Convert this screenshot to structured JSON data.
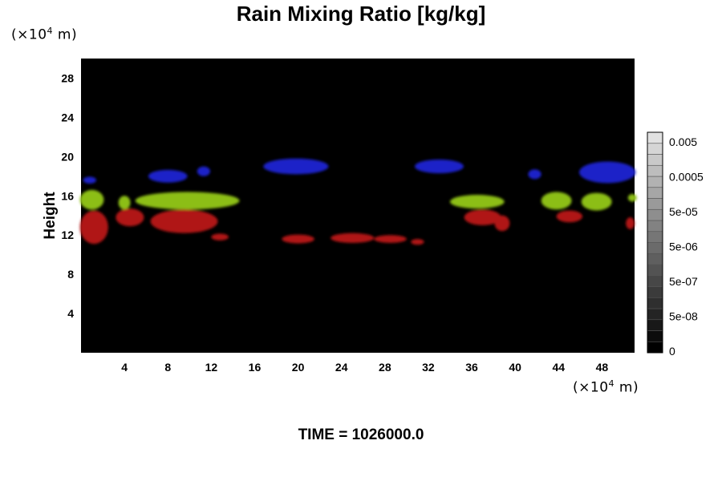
{
  "chart_data": {
    "type": "heatmap",
    "title": "Rain Mixing Ratio [kg/kg]",
    "ylabel": "Height",
    "x_unit_prefix": "(×10",
    "x_unit_exp": "4",
    "x_unit_suffix": " m)",
    "y_unit_prefix": "(×10",
    "y_unit_exp": "4",
    "y_unit_suffix": " m)",
    "xlim": [
      0,
      51
    ],
    "ylim": [
      0,
      30
    ],
    "xticks": [
      4,
      8,
      12,
      16,
      20,
      24,
      28,
      32,
      36,
      40,
      44,
      48
    ],
    "yticks": [
      4,
      8,
      12,
      16,
      20,
      24,
      28
    ],
    "background_color": "#000000",
    "colorbar": {
      "labels": [
        "0",
        "5e-08",
        "5e-07",
        "5e-06",
        "5e-05",
        "0.0005",
        "0.005"
      ],
      "levels": 20
    },
    "regions": [
      {
        "layer": "upper",
        "color": "#1a22c8",
        "blobs": [
          {
            "x": 0.8,
            "y": 17.6,
            "w": 1.2,
            "h": 0.7
          },
          {
            "x": 8.0,
            "y": 18.0,
            "w": 3.6,
            "h": 1.3
          },
          {
            "x": 11.3,
            "y": 18.5,
            "w": 1.2,
            "h": 1.0
          },
          {
            "x": 19.8,
            "y": 19.0,
            "w": 6.0,
            "h": 1.6
          },
          {
            "x": 33.0,
            "y": 19.0,
            "w": 4.5,
            "h": 1.4
          },
          {
            "x": 41.8,
            "y": 18.2,
            "w": 1.2,
            "h": 1.0
          },
          {
            "x": 48.5,
            "y": 18.4,
            "w": 5.2,
            "h": 2.2
          }
        ]
      },
      {
        "layer": "middle",
        "color": "#8cbe14",
        "blobs": [
          {
            "x": 1.0,
            "y": 15.6,
            "w": 2.2,
            "h": 2.0
          },
          {
            "x": 4.0,
            "y": 15.3,
            "w": 1.1,
            "h": 1.4
          },
          {
            "x": 9.8,
            "y": 15.5,
            "w": 9.6,
            "h": 1.8
          },
          {
            "x": 36.5,
            "y": 15.4,
            "w": 5.0,
            "h": 1.4
          },
          {
            "x": 43.8,
            "y": 15.5,
            "w": 2.8,
            "h": 1.8
          },
          {
            "x": 47.5,
            "y": 15.4,
            "w": 2.8,
            "h": 1.8
          },
          {
            "x": 50.8,
            "y": 15.8,
            "w": 0.8,
            "h": 0.8
          }
        ]
      },
      {
        "layer": "lower",
        "color": "#b01414",
        "blobs": [
          {
            "x": 1.2,
            "y": 12.8,
            "w": 2.6,
            "h": 3.4
          },
          {
            "x": 4.5,
            "y": 13.8,
            "w": 2.6,
            "h": 1.8
          },
          {
            "x": 9.5,
            "y": 13.4,
            "w": 6.2,
            "h": 2.4
          },
          {
            "x": 12.8,
            "y": 11.8,
            "w": 1.6,
            "h": 0.7
          },
          {
            "x": 25.0,
            "y": 11.7,
            "w": 4.0,
            "h": 1.0
          },
          {
            "x": 20.0,
            "y": 11.6,
            "w": 3.0,
            "h": 0.9
          },
          {
            "x": 28.5,
            "y": 11.6,
            "w": 3.0,
            "h": 0.8
          },
          {
            "x": 31.0,
            "y": 11.3,
            "w": 1.2,
            "h": 0.6
          },
          {
            "x": 37.0,
            "y": 13.8,
            "w": 3.4,
            "h": 1.6
          },
          {
            "x": 38.8,
            "y": 13.2,
            "w": 1.4,
            "h": 1.6
          },
          {
            "x": 45.0,
            "y": 13.9,
            "w": 2.4,
            "h": 1.2
          },
          {
            "x": 50.6,
            "y": 13.2,
            "w": 0.8,
            "h": 1.2
          }
        ]
      }
    ]
  },
  "footer": {
    "time_label": "TIME = 1026000.0"
  }
}
